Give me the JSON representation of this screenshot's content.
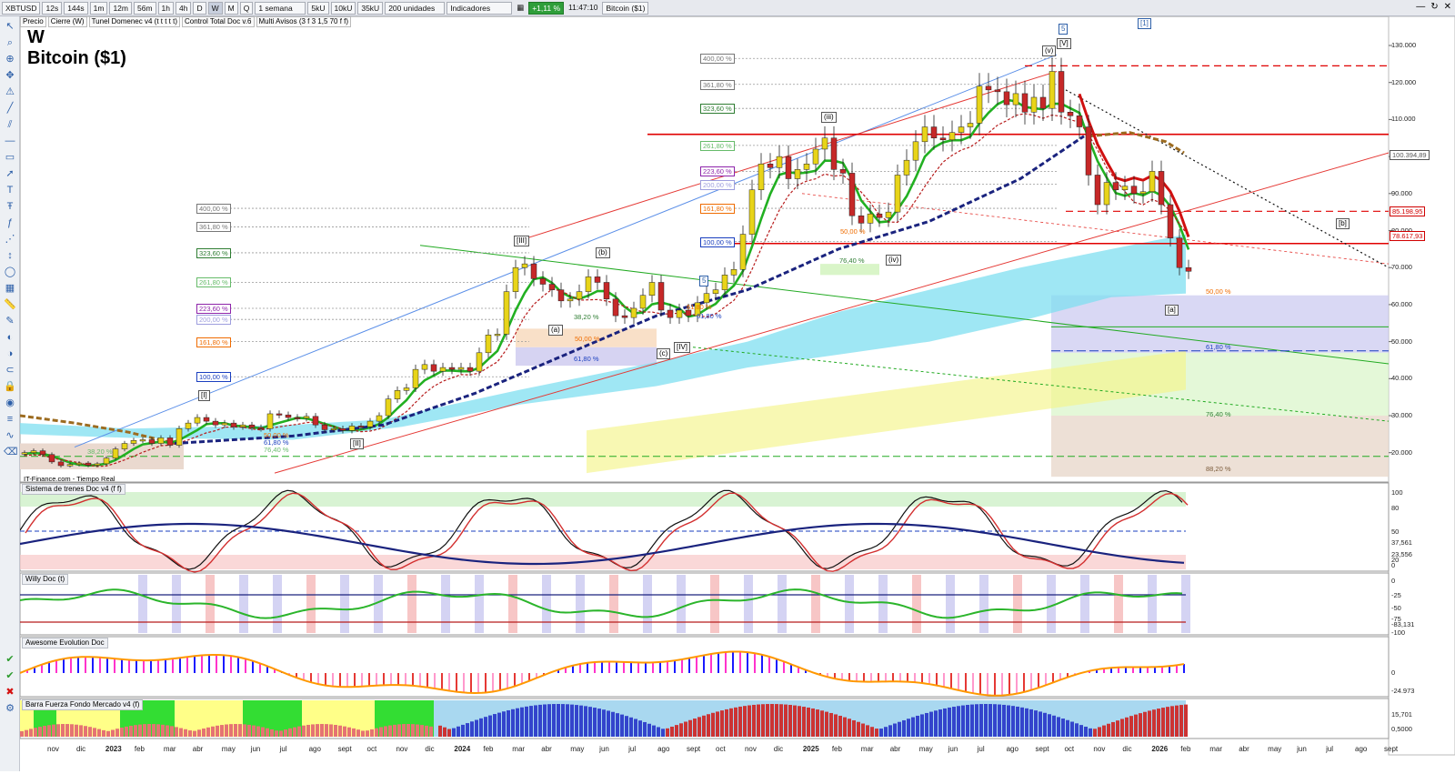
{
  "toolbar": {
    "symbol": "XBTUSD",
    "timeframes": [
      "12s",
      "144s",
      "1m",
      "12m",
      "56m",
      "1h",
      "4h",
      "D",
      "W",
      "M",
      "Q"
    ],
    "active_timeframe": "W",
    "period": "1 semana",
    "units": [
      "5kU",
      "10kU",
      "35kU"
    ],
    "bars": "200 unidades",
    "indicators_label": "Indicadores",
    "change": "+1,11 %",
    "time": "11:47:10",
    "instrument": "Bitcoin ($1)"
  },
  "layers": [
    "Precio",
    "Cierre (W)",
    "Tunel Domenec v4 (t t t t t)",
    "Control Total Doc v.6",
    "Multi Avisos (3 f 3 1,5 70 f f)"
  ],
  "main": {
    "timeframe": "W",
    "name": "Bitcoin ($1)",
    "source": "IT-Finance.com - Tiempo Real",
    "y_ticks": [
      "130.000",
      "120.000",
      "110.000",
      "100.000",
      "90.000",
      "80.000",
      "70.000",
      "60.000",
      "50.000",
      "40.000",
      "30.000",
      "20.000"
    ],
    "price_tags": [
      {
        "text": "100.394,89",
        "color": "#ffffff"
      },
      {
        "text": "85.198,95",
        "color": "#ffffff"
      },
      {
        "text": "78.617,93",
        "color": "#ffffff"
      }
    ],
    "waves": [
      "5",
      "[1]",
      "[V]",
      "(v)",
      "(iii)",
      "(iv)",
      "[III]",
      "(b)",
      "(a)",
      "(c)",
      "[IV]",
      "[I]",
      "[II]",
      "[a]",
      "[b]",
      "5"
    ],
    "fib_left": [
      "400,00 %",
      "361,80 %",
      "323,60 %",
      "261,80 %",
      "223,60 %",
      "200,00 %",
      "161,80 %",
      "100,00 %"
    ],
    "fib_top": [
      "400,00 %",
      "361,80 %",
      "323,60 %",
      "261,80 %",
      "223,60 %",
      "200,00 %",
      "161,80 %",
      "100,00 %"
    ],
    "retrace_labels": [
      "50,00 %",
      "61,80 %",
      "38,20 %",
      "50,00 %",
      "61,80 %",
      "50,00 %",
      "61,80 %",
      "76,40 %",
      "88,20 %",
      "61,80 %",
      "76,40 %",
      "38,20 %",
      "50,00 %",
      "61,80 %",
      "76,40 %"
    ]
  },
  "panels": [
    {
      "title": "Sistema de trenes Doc v4 (f f)",
      "ticks": [
        "100",
        "80",
        "50",
        "37,561",
        "23,556",
        "20",
        "0"
      ]
    },
    {
      "title": "Willy Doc (t)",
      "ticks": [
        "0",
        "-25",
        "-50",
        "-75",
        "-83,131",
        "-100"
      ]
    },
    {
      "title": "Awesome Evolution Doc",
      "ticks": [
        "0",
        "-24.973"
      ]
    },
    {
      "title": "Barra Fuerza Fondo Mercado v4 (f)",
      "ticks": [
        "15,701",
        "0,5000"
      ]
    }
  ],
  "x_axis": [
    "nov",
    "dic",
    "2023",
    "feb",
    "mar",
    "abr",
    "may",
    "jun",
    "jul",
    "ago",
    "sept",
    "oct",
    "nov",
    "dic",
    "2024",
    "feb",
    "mar",
    "abr",
    "may",
    "jun",
    "jul",
    "ago",
    "sept",
    "oct",
    "nov",
    "dic",
    "2025",
    "feb",
    "mar",
    "abr",
    "may",
    "jun",
    "jul",
    "ago",
    "sept",
    "oct",
    "nov",
    "dic",
    "2026",
    "feb",
    "mar",
    "abr",
    "may",
    "jun",
    "jul",
    "ago",
    "sept"
  ],
  "colors": {
    "up": "#e8d419",
    "down": "#c62828",
    "green_line": "#22b022",
    "red_line": "#d01010",
    "blue_dash": "#1a237e",
    "cloud": "#7fdff0"
  }
}
